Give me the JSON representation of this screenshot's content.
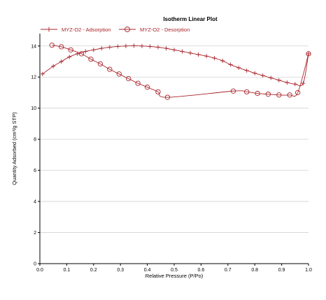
{
  "chart_data": {
    "type": "line",
    "title": "Isotherm Linear Plot",
    "xlabel": "Relative Pressure (P/Po)",
    "ylabel": "Quantity Adsorbed (cm³/g STP)",
    "xlim": [
      0,
      1.0
    ],
    "ylim": [
      0,
      14.8
    ],
    "x_ticks": [
      0.0,
      0.1,
      0.2,
      0.3,
      0.4,
      0.5,
      0.6,
      0.7,
      0.8,
      0.9,
      1.0
    ],
    "x_tick_labels": [
      "0.0",
      "0.1",
      "0.2",
      "0.3",
      "0.4",
      "0.5",
      "0.6",
      "0.7",
      "0.8",
      "0.9",
      "1.0"
    ],
    "y_ticks": [
      0,
      2,
      4,
      6,
      8,
      10,
      12,
      14
    ],
    "y_tick_labels": [
      "0",
      "2",
      "4",
      "6",
      "8",
      "10",
      "12",
      "14"
    ],
    "grid": "horizontal",
    "legend_position": "top-left",
    "colors": {
      "series": "#a8242b",
      "grid": "#d2d2d2",
      "axis": "#000000"
    },
    "series": [
      {
        "name": "MYZ-O2 - Adsorption",
        "marker": "plus",
        "x": [
          0.01,
          0.05,
          0.08,
          0.11,
          0.14,
          0.17,
          0.2,
          0.23,
          0.26,
          0.29,
          0.32,
          0.35,
          0.38,
          0.41,
          0.44,
          0.47,
          0.5,
          0.53,
          0.56,
          0.59,
          0.62,
          0.65,
          0.68,
          0.71,
          0.74,
          0.77,
          0.8,
          0.83,
          0.86,
          0.89,
          0.92,
          0.95,
          0.98,
          1.0
        ],
        "y": [
          12.2,
          12.7,
          13.0,
          13.3,
          13.5,
          13.65,
          13.75,
          13.85,
          13.92,
          13.97,
          14.0,
          14.02,
          14.0,
          13.97,
          13.92,
          13.85,
          13.75,
          13.65,
          13.55,
          13.45,
          13.35,
          13.22,
          13.05,
          12.8,
          12.6,
          12.42,
          12.25,
          12.1,
          11.95,
          11.8,
          11.65,
          11.55,
          11.6,
          13.5
        ]
      },
      {
        "name": "MYZ-O2 - Desorption",
        "marker": "circle",
        "x": [
          1.0,
          0.96,
          0.93,
          0.89,
          0.85,
          0.81,
          0.77,
          0.72,
          0.475,
          0.44,
          0.4,
          0.365,
          0.33,
          0.295,
          0.26,
          0.225,
          0.19,
          0.155,
          0.115,
          0.08,
          0.045
        ],
        "y": [
          13.5,
          11.0,
          10.85,
          10.85,
          10.9,
          10.95,
          11.05,
          11.1,
          10.7,
          11.05,
          11.35,
          11.6,
          11.9,
          12.2,
          12.5,
          12.85,
          13.15,
          13.5,
          13.75,
          13.95,
          14.05
        ]
      }
    ]
  }
}
